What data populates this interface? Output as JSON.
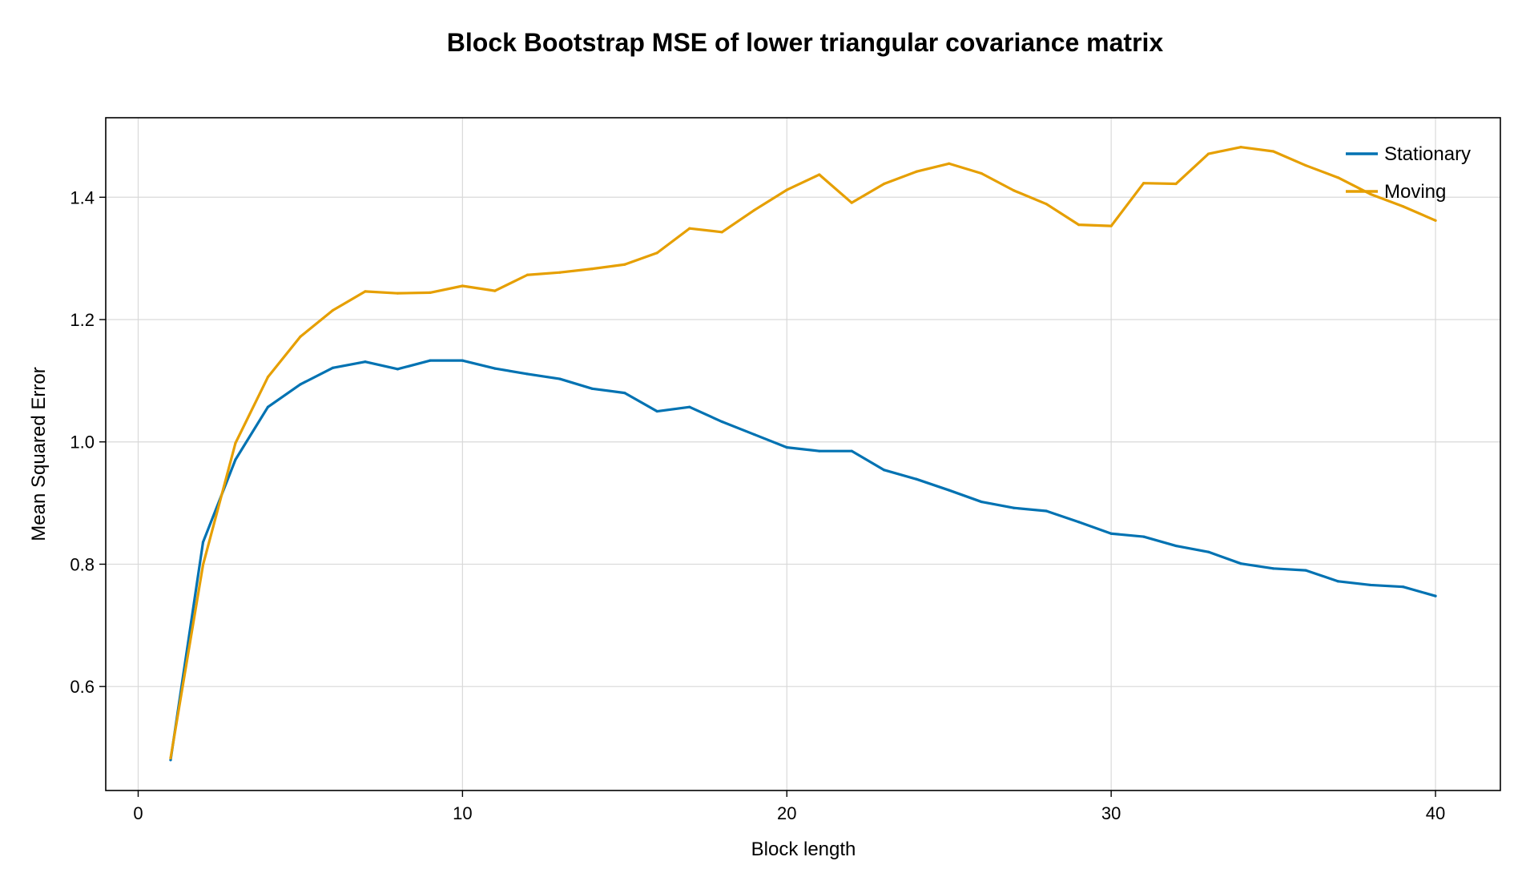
{
  "chart_data": {
    "type": "line",
    "title": "Block Bootstrap MSE of lower triangular covariance matrix",
    "xlabel": "Block length",
    "ylabel": "Mean Squared Error",
    "xlim": [
      -1,
      42
    ],
    "ylim": [
      0.43,
      1.53
    ],
    "xticks": [
      0,
      10,
      20,
      30,
      40
    ],
    "yticks": [
      0.6,
      0.8,
      1.0,
      1.2,
      1.4
    ],
    "xtick_labels": [
      "0",
      "10",
      "20",
      "30",
      "40"
    ],
    "ytick_labels": [
      "0.6",
      "0.8",
      "1.0",
      "1.2",
      "1.4"
    ],
    "grid": true,
    "legend_position": "top-right",
    "x": [
      1,
      2,
      3,
      4,
      5,
      6,
      7,
      8,
      9,
      10,
      11,
      12,
      13,
      14,
      15,
      16,
      17,
      18,
      19,
      20,
      21,
      22,
      23,
      24,
      25,
      26,
      27,
      28,
      29,
      30,
      31,
      32,
      33,
      34,
      35,
      36,
      37,
      38,
      39,
      40
    ],
    "series": [
      {
        "name": "Stationary",
        "color": "#0072b2",
        "values": [
          0.48,
          0.836,
          0.971,
          1.057,
          1.094,
          1.121,
          1.131,
          1.119,
          1.133,
          1.133,
          1.12,
          1.111,
          1.103,
          1.087,
          1.08,
          1.05,
          1.057,
          1.033,
          1.012,
          0.991,
          0.985,
          0.985,
          0.954,
          0.939,
          0.921,
          0.902,
          0.892,
          0.887,
          0.869,
          0.85,
          0.845,
          0.83,
          0.82,
          0.801,
          0.793,
          0.79,
          0.772,
          0.766,
          0.763,
          0.748
        ]
      },
      {
        "name": "Moving",
        "color": "#e69f00",
        "values": [
          0.483,
          0.799,
          0.998,
          1.106,
          1.172,
          1.215,
          1.246,
          1.243,
          1.244,
          1.255,
          1.247,
          1.273,
          1.277,
          1.283,
          1.29,
          1.309,
          1.349,
          1.343,
          1.379,
          1.412,
          1.437,
          1.391,
          1.422,
          1.442,
          1.455,
          1.439,
          1.411,
          1.389,
          1.355,
          1.353,
          1.423,
          1.422,
          1.471,
          1.482,
          1.475,
          1.452,
          1.432,
          1.405,
          1.385,
          1.362
        ]
      }
    ]
  }
}
